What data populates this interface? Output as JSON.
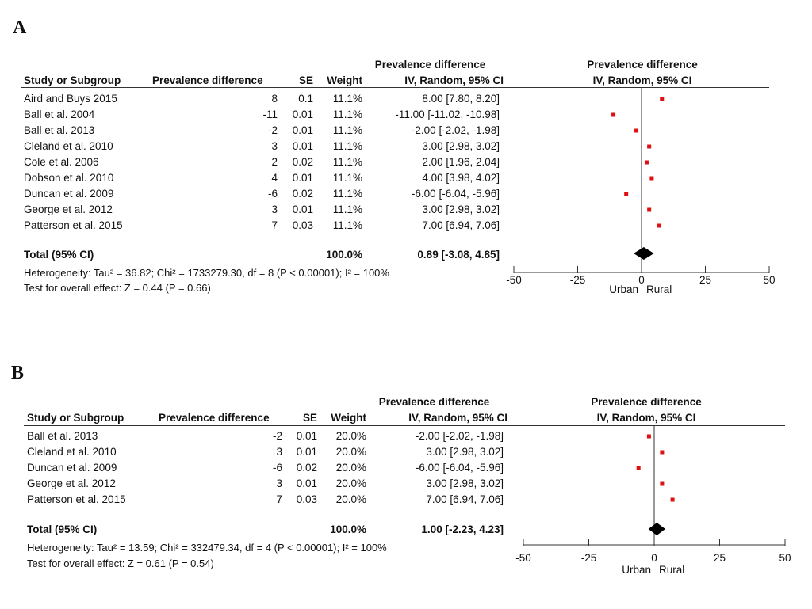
{
  "chart_data": [
    {
      "type": "forest",
      "panel": "A",
      "header_group_left": "Prevalence difference",
      "header_group_right": "Prevalence difference",
      "columns": [
        "Study or Subgroup",
        "Prevalence difference",
        "SE",
        "Weight",
        "IV, Random, 95% CI",
        "IV, Random, 95% CI"
      ],
      "rows": [
        {
          "study": "Aird and Buys 2015",
          "pd": "8",
          "se": "0.1",
          "weight": "11.1%",
          "ci_text": "8.00 [7.80, 8.20]",
          "est": 8.0,
          "lo": 7.8,
          "hi": 8.2
        },
        {
          "study": "Ball et al. 2004",
          "pd": "-11",
          "se": "0.01",
          "weight": "11.1%",
          "ci_text": "-11.00 [-11.02, -10.98]",
          "est": -11.0,
          "lo": -11.02,
          "hi": -10.98
        },
        {
          "study": "Ball et al. 2013",
          "pd": "-2",
          "se": "0.01",
          "weight": "11.1%",
          "ci_text": "-2.00 [-2.02, -1.98]",
          "est": -2.0,
          "lo": -2.02,
          "hi": -1.98
        },
        {
          "study": "Cleland et al. 2010",
          "pd": "3",
          "se": "0.01",
          "weight": "11.1%",
          "ci_text": "3.00 [2.98, 3.02]",
          "est": 3.0,
          "lo": 2.98,
          "hi": 3.02
        },
        {
          "study": "Cole et al. 2006",
          "pd": "2",
          "se": "0.02",
          "weight": "11.1%",
          "ci_text": "2.00 [1.96, 2.04]",
          "est": 2.0,
          "lo": 1.96,
          "hi": 2.04
        },
        {
          "study": "Dobson et al. 2010",
          "pd": "4",
          "se": "0.01",
          "weight": "11.1%",
          "ci_text": "4.00 [3.98, 4.02]",
          "est": 4.0,
          "lo": 3.98,
          "hi": 4.02
        },
        {
          "study": "Duncan et al. 2009",
          "pd": "-6",
          "se": "0.02",
          "weight": "11.1%",
          "ci_text": "-6.00 [-6.04, -5.96]",
          "est": -6.0,
          "lo": -6.04,
          "hi": -5.96
        },
        {
          "study": "George et al. 2012",
          "pd": "3",
          "se": "0.01",
          "weight": "11.1%",
          "ci_text": "3.00 [2.98, 3.02]",
          "est": 3.0,
          "lo": 2.98,
          "hi": 3.02
        },
        {
          "study": "Patterson et al. 2015",
          "pd": "7",
          "se": "0.03",
          "weight": "11.1%",
          "ci_text": "7.00 [6.94, 7.06]",
          "est": 7.0,
          "lo": 6.94,
          "hi": 7.06
        }
      ],
      "total": {
        "label": "Total (95% CI)",
        "weight": "100.0%",
        "ci_text": "0.89 [-3.08, 4.85]",
        "est": 0.89,
        "lo": -3.08,
        "hi": 4.85
      },
      "heterogeneity": "Heterogeneity: Tau² = 36.82; Chi² = 1733279.30, df = 8 (P < 0.00001); I² = 100%",
      "overall_effect": "Test for overall effect: Z = 0.44 (P = 0.66)",
      "xlim": [
        -50,
        50
      ],
      "xticks": [
        -50,
        -25,
        0,
        25,
        50
      ],
      "favours_left": "Urban",
      "favours_right": "Rural",
      "marker_color": "#dd1111",
      "diamond_color": "#000000"
    },
    {
      "type": "forest",
      "panel": "B",
      "header_group_left": "Prevalence difference",
      "header_group_right": "Prevalence difference",
      "columns": [
        "Study or Subgroup",
        "Prevalence difference",
        "SE",
        "Weight",
        "IV, Random, 95% CI",
        "IV, Random, 95% CI"
      ],
      "rows": [
        {
          "study": "Ball et al. 2013",
          "pd": "-2",
          "se": "0.01",
          "weight": "20.0%",
          "ci_text": "-2.00 [-2.02, -1.98]",
          "est": -2.0,
          "lo": -2.02,
          "hi": -1.98
        },
        {
          "study": "Cleland et al. 2010",
          "pd": "3",
          "se": "0.01",
          "weight": "20.0%",
          "ci_text": "3.00 [2.98, 3.02]",
          "est": 3.0,
          "lo": 2.98,
          "hi": 3.02
        },
        {
          "study": "Duncan et al. 2009",
          "pd": "-6",
          "se": "0.02",
          "weight": "20.0%",
          "ci_text": "-6.00 [-6.04, -5.96]",
          "est": -6.0,
          "lo": -6.04,
          "hi": -5.96
        },
        {
          "study": "George et al. 2012",
          "pd": "3",
          "se": "0.01",
          "weight": "20.0%",
          "ci_text": "3.00 [2.98, 3.02]",
          "est": 3.0,
          "lo": 2.98,
          "hi": 3.02
        },
        {
          "study": "Patterson et al. 2015",
          "pd": "7",
          "se": "0.03",
          "weight": "20.0%",
          "ci_text": "7.00 [6.94, 7.06]",
          "est": 7.0,
          "lo": 6.94,
          "hi": 7.06
        }
      ],
      "total": {
        "label": "Total (95% CI)",
        "weight": "100.0%",
        "ci_text": "1.00 [-2.23, 4.23]",
        "est": 1.0,
        "lo": -2.23,
        "hi": 4.23
      },
      "heterogeneity": "Heterogeneity: Tau² = 13.59; Chi² = 332479.34, df = 4 (P < 0.00001); I² = 100%",
      "overall_effect": "Test for overall effect: Z = 0.61 (P = 0.54)",
      "xlim": [
        -50,
        50
      ],
      "xticks": [
        -50,
        -25,
        0,
        25,
        50
      ],
      "favours_left": "Urban",
      "favours_right": "Rural",
      "marker_color": "#dd1111",
      "diamond_color": "#000000"
    }
  ]
}
